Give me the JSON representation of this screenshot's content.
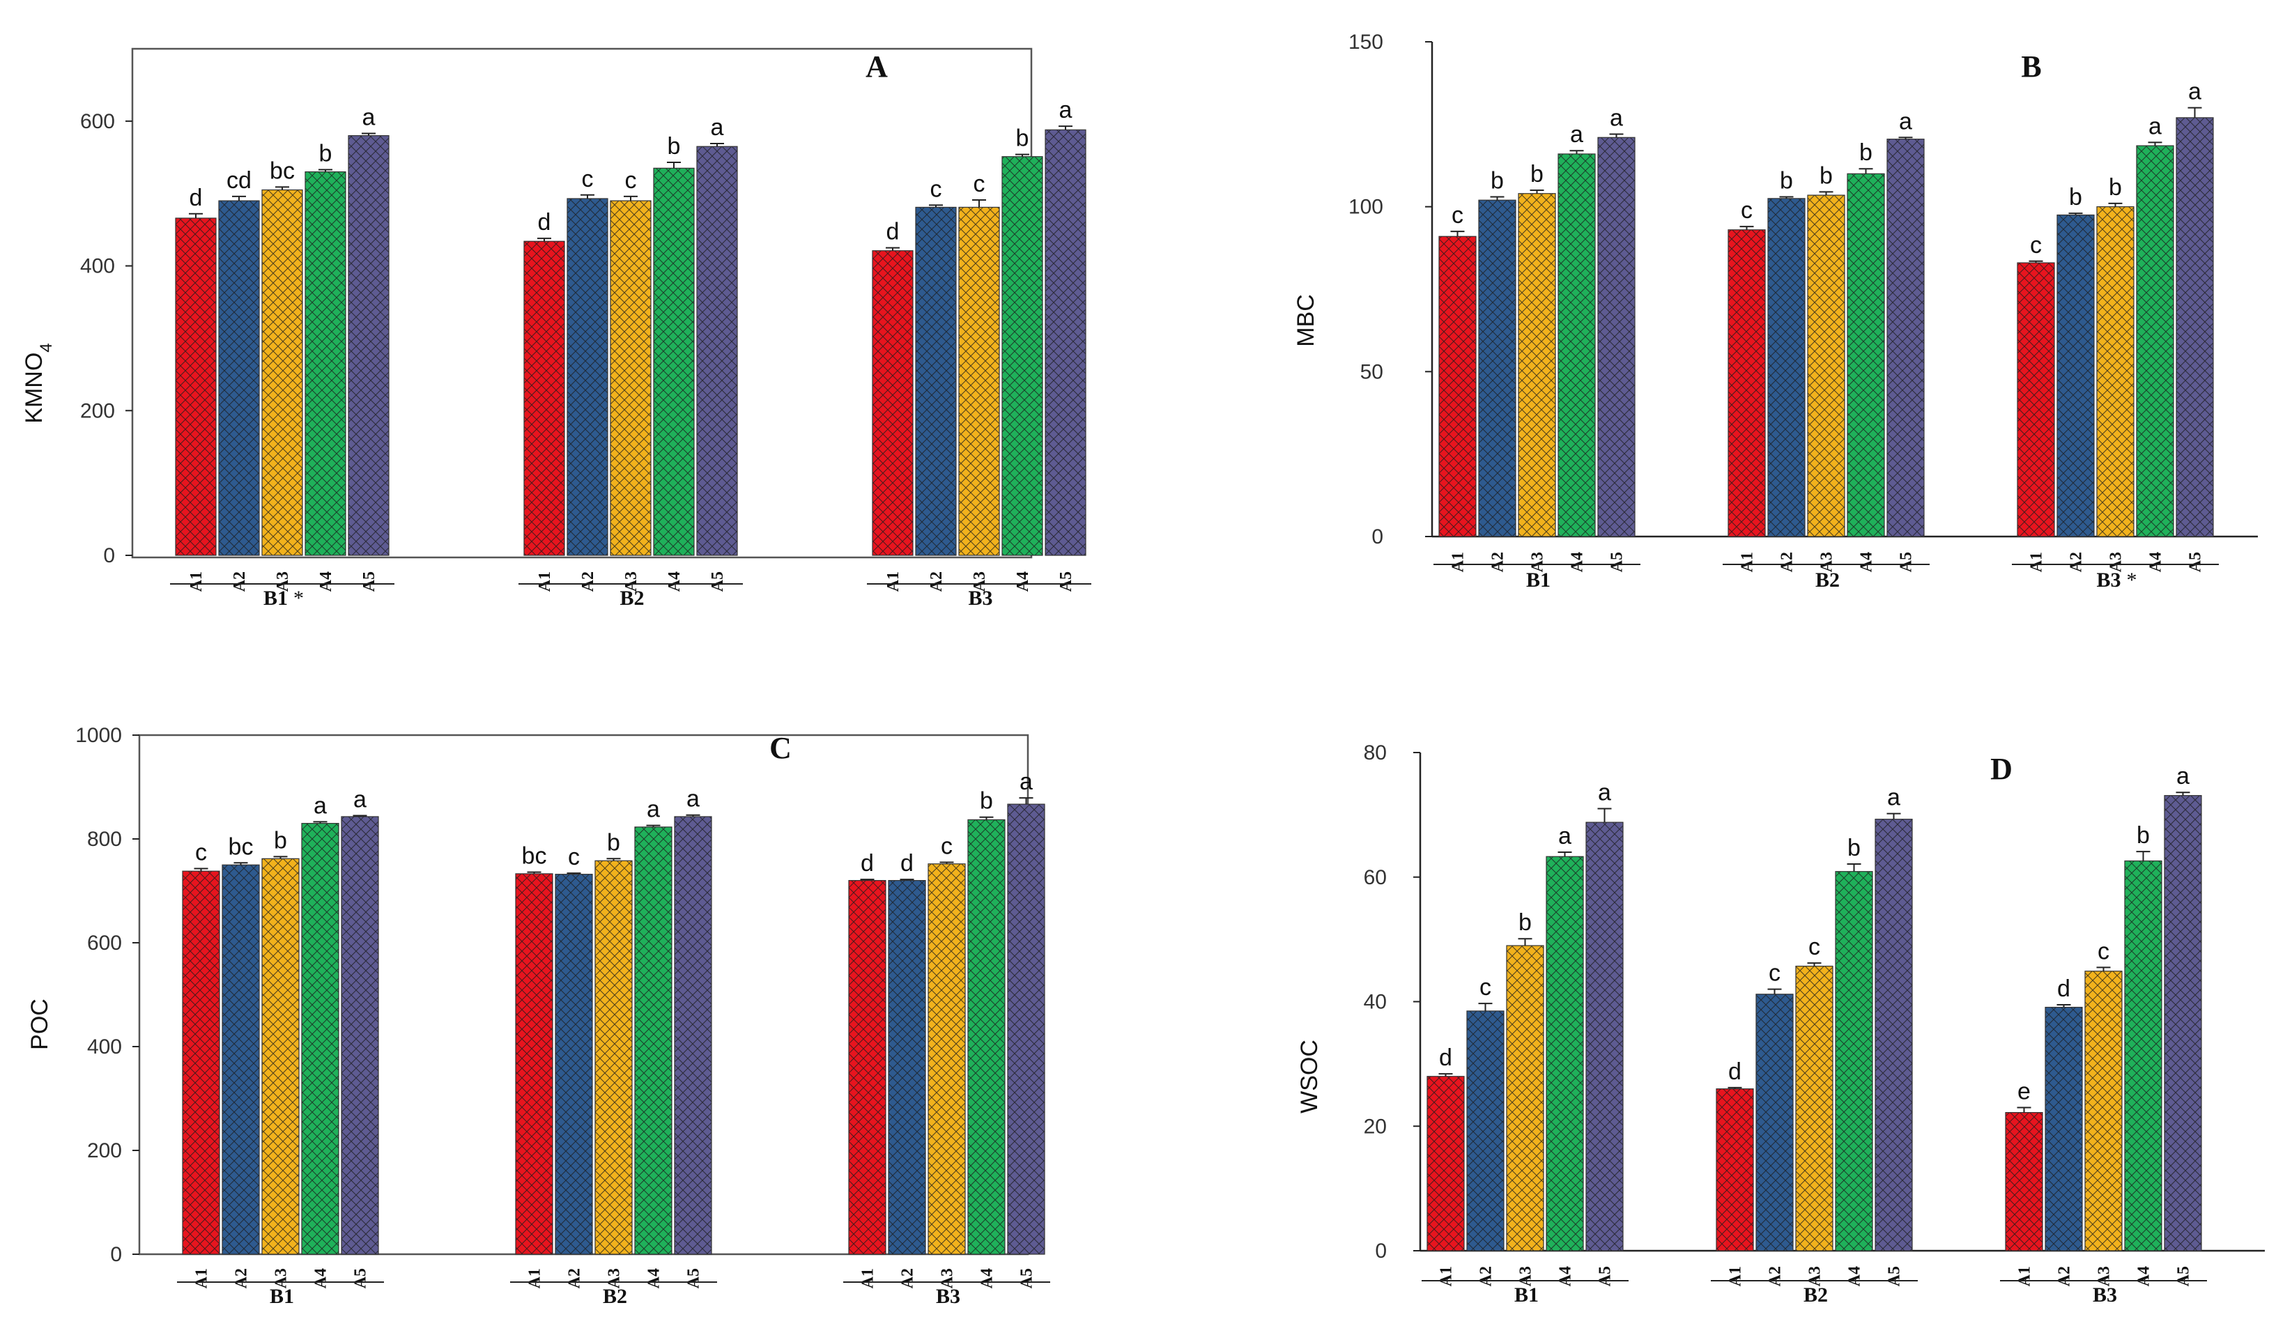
{
  "figure": {
    "title": "",
    "treatments": [
      "A1",
      "A2",
      "A3",
      "A4",
      "A5"
    ],
    "colors": {
      "A1": "#e8141e",
      "A2": "#2e5a8f",
      "A3": "#f2b21c",
      "A4": "#1fb15a",
      "A5": "#5e5b92",
      "hatch": "#1a1a1a",
      "axis": "#222222",
      "frame": "#555555"
    }
  },
  "chart_data": [
    {
      "type": "bar",
      "panel_label": "A",
      "title": "",
      "xlabel": "",
      "ylabel": "KMNO",
      "ylabel_sub": "4",
      "ylim": [
        0,
        700
      ],
      "yticks": [
        0,
        200,
        400,
        600
      ],
      "grid": false,
      "groups": [
        "B1",
        "B2",
        "B3"
      ],
      "group_marks": [
        "*",
        "",
        ""
      ],
      "categories": [
        "A1",
        "A2",
        "A3",
        "A4",
        "A5"
      ],
      "series": [
        {
          "name": "B1",
          "values": [
            466,
            490,
            505,
            530,
            580
          ],
          "errors": [
            6,
            6,
            4,
            3,
            3
          ],
          "letters": [
            "d",
            "cd",
            "bc",
            "b",
            "a"
          ]
        },
        {
          "name": "B2",
          "values": [
            434,
            493,
            490,
            535,
            565
          ],
          "errors": [
            4,
            5,
            6,
            8,
            4
          ],
          "letters": [
            "d",
            "c",
            "c",
            "b",
            "a"
          ]
        },
        {
          "name": "B3",
          "values": [
            421,
            481,
            481,
            551,
            588
          ],
          "errors": [
            4,
            3,
            10,
            3,
            5
          ],
          "letters": [
            "d",
            "c",
            "c",
            "b",
            "a"
          ]
        }
      ]
    },
    {
      "type": "bar",
      "panel_label": "B",
      "title": "",
      "xlabel": "",
      "ylabel": "MBC",
      "ylabel_sub": "",
      "ylim": [
        0,
        150
      ],
      "yticks": [
        0,
        50,
        100,
        150
      ],
      "grid": false,
      "groups": [
        "B1",
        "B2",
        "B3"
      ],
      "group_marks": [
        "",
        "",
        "*"
      ],
      "categories": [
        "A1",
        "A2",
        "A3",
        "A4",
        "A5"
      ],
      "series": [
        {
          "name": "B1",
          "values": [
            91,
            102,
            104,
            116,
            121
          ],
          "errors": [
            1.5,
            1,
            1,
            1,
            1
          ],
          "letters": [
            "c",
            "b",
            "b",
            "a",
            "a"
          ]
        },
        {
          "name": "B2",
          "values": [
            93,
            102.5,
            103.5,
            110,
            120.5
          ],
          "errors": [
            1,
            0.5,
            1,
            1.5,
            0.5
          ],
          "letters": [
            "c",
            "b",
            "b",
            "b",
            "a"
          ]
        },
        {
          "name": "B3",
          "values": [
            83,
            97.5,
            100,
            118.5,
            127
          ],
          "errors": [
            0.5,
            0.5,
            1,
            1,
            3
          ],
          "letters": [
            "c",
            "b",
            "b",
            "a",
            "a"
          ]
        }
      ]
    },
    {
      "type": "bar",
      "panel_label": "C",
      "title": "",
      "xlabel": "",
      "ylabel": "POC",
      "ylabel_sub": "",
      "ylim": [
        0,
        1000
      ],
      "yticks": [
        0,
        200,
        400,
        600,
        800,
        1000
      ],
      "grid": false,
      "groups": [
        "B1",
        "B2",
        "B3"
      ],
      "group_marks": [
        "",
        "",
        ""
      ],
      "categories": [
        "A1",
        "A2",
        "A3",
        "A4",
        "A5"
      ],
      "series": [
        {
          "name": "B1",
          "values": [
            738,
            750,
            762,
            830,
            843
          ],
          "errors": [
            5,
            4,
            4,
            3,
            2
          ],
          "letters": [
            "c",
            "bc",
            "b",
            "a",
            "a"
          ]
        },
        {
          "name": "B2",
          "values": [
            733,
            732,
            758,
            823,
            843
          ],
          "errors": [
            3,
            2,
            4,
            3,
            3
          ],
          "letters": [
            "bc",
            "c",
            "b",
            "a",
            "a"
          ]
        },
        {
          "name": "B3",
          "values": [
            720,
            720,
            752,
            837,
            867
          ],
          "errors": [
            2,
            2,
            3,
            5,
            12
          ],
          "letters": [
            "d",
            "d",
            "c",
            "b",
            "a"
          ]
        }
      ]
    },
    {
      "type": "bar",
      "panel_label": "D",
      "title": "",
      "xlabel": "",
      "ylabel": "WSOC",
      "ylabel_sub": "",
      "ylim": [
        0,
        80
      ],
      "yticks": [
        0,
        20,
        40,
        60,
        80
      ],
      "grid": false,
      "groups": [
        "B1",
        "B2",
        "B3"
      ],
      "group_marks": [
        "",
        "",
        ""
      ],
      "categories": [
        "A1",
        "A2",
        "A3",
        "A4",
        "A5"
      ],
      "series": [
        {
          "name": "B1",
          "values": [
            28,
            38.5,
            49,
            63.3,
            68.8
          ],
          "errors": [
            0.4,
            1.2,
            1.1,
            0.7,
            2.2
          ],
          "letters": [
            "d",
            "c",
            "b",
            "a",
            "a"
          ]
        },
        {
          "name": "B2",
          "values": [
            26,
            41.2,
            45.7,
            60.9,
            69.3
          ],
          "errors": [
            0.2,
            0.8,
            0.5,
            1.2,
            0.9
          ],
          "letters": [
            "d",
            "c",
            "c",
            "b",
            "a"
          ]
        },
        {
          "name": "B3",
          "values": [
            22.2,
            39.1,
            44.9,
            62.6,
            73.1
          ],
          "errors": [
            0.8,
            0.4,
            0.6,
            1.5,
            0.5
          ],
          "letters": [
            "e",
            "d",
            "c",
            "b",
            "a"
          ]
        }
      ]
    }
  ]
}
